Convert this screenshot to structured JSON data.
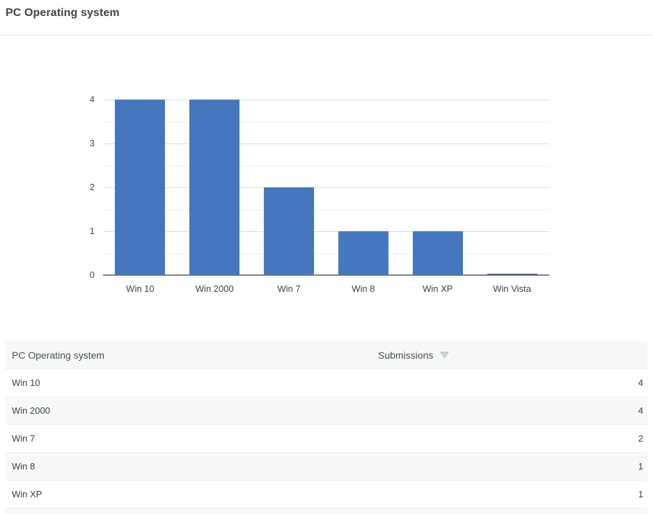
{
  "page": {
    "title": "PC Operating system"
  },
  "chart_data": {
    "type": "bar",
    "title": "PC Operating system",
    "categories": [
      "Win 10",
      "Win 2000",
      "Win 7",
      "Win 8",
      "Win XP",
      "Win Vista"
    ],
    "values": [
      4,
      4,
      2,
      1,
      1,
      0
    ],
    "xlabel": "",
    "ylabel": "",
    "ylim": [
      0,
      4
    ],
    "yticks": [
      0,
      1,
      2,
      3,
      4
    ],
    "minor_grid_step": 0.5,
    "grid": "horizontal",
    "legend": "none"
  },
  "table": {
    "columns": [
      {
        "label": "PC Operating system",
        "sort": "none"
      },
      {
        "label": "Submissions",
        "sort": "desc"
      }
    ],
    "rows": [
      {
        "label": "Win 10",
        "value": "4"
      },
      {
        "label": "Win 2000",
        "value": "4"
      },
      {
        "label": "Win 7",
        "value": "2"
      },
      {
        "label": "Win 8",
        "value": "1"
      },
      {
        "label": "Win XP",
        "value": "1"
      }
    ]
  },
  "colors": {
    "bar": "#4577be",
    "zero_bar": "#476392",
    "axis_line": "#818181",
    "grid_major": "#dcdcdc",
    "grid_minor": "#f0f0f0",
    "header_bg": "#f6f7f7",
    "row_alt_bg": "#f7f8f8",
    "sort_icon_fill": "#d4d7da",
    "sort_icon_stroke": "#b7bbbf"
  }
}
